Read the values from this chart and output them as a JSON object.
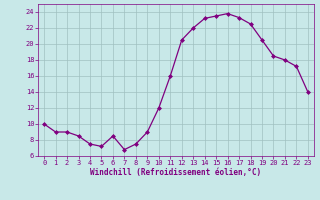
{
  "x": [
    0,
    1,
    2,
    3,
    4,
    5,
    6,
    7,
    8,
    9,
    10,
    11,
    12,
    13,
    14,
    15,
    16,
    17,
    18,
    19,
    20,
    21,
    22,
    23
  ],
  "y": [
    10,
    9,
    9,
    8.5,
    7.5,
    7.2,
    8.5,
    6.8,
    7.5,
    9,
    12,
    16,
    20.5,
    22,
    23.2,
    23.5,
    23.8,
    23.3,
    22.5,
    20.5,
    18.5,
    18,
    17.2,
    14
  ],
  "line_color": "#800080",
  "marker": "D",
  "marker_size": 2,
  "bg_color": "#c8e8e8",
  "grid_color": "#a0c0c0",
  "xlabel": "Windchill (Refroidissement éolien,°C)",
  "xlabel_color": "#800080",
  "tick_color": "#800080",
  "spine_color": "#800080",
  "xlim": [
    -0.5,
    23.5
  ],
  "ylim": [
    6,
    25
  ],
  "yticks": [
    6,
    8,
    10,
    12,
    14,
    16,
    18,
    20,
    22,
    24
  ],
  "xticks": [
    0,
    1,
    2,
    3,
    4,
    5,
    6,
    7,
    8,
    9,
    10,
    11,
    12,
    13,
    14,
    15,
    16,
    17,
    18,
    19,
    20,
    21,
    22,
    23
  ],
  "xlabel_fontsize": 5.5,
  "xlabel_fontweight": "bold",
  "tick_fontsize": 5.0,
  "linewidth": 0.9
}
